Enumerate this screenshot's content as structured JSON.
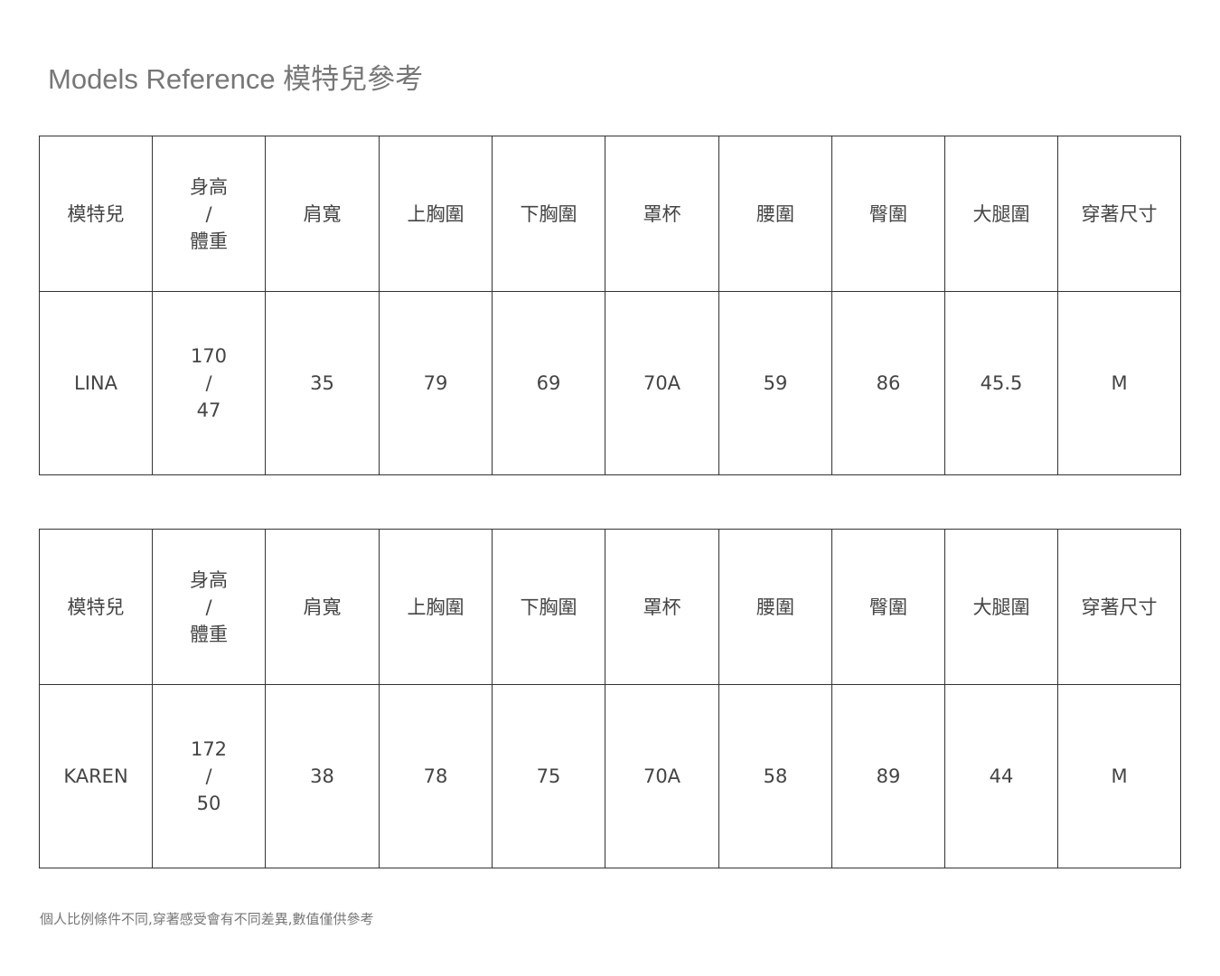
{
  "title": "Models Reference 模特兒參考",
  "headers": [
    "模特兒",
    "身高",
    "/",
    "體重",
    "肩寬",
    "上胸圍",
    "下胸圍",
    "罩杯",
    "腰圍",
    "臀圍",
    "大腿圍",
    "穿著尺寸"
  ],
  "models": [
    {
      "name": "LINA",
      "height": "170",
      "sep": "/",
      "weight": "47",
      "shoulder": "35",
      "upper_bust": "79",
      "under_bust": "69",
      "cup": "70A",
      "waist": "59",
      "hip": "86",
      "thigh": "45.5",
      "size": "M"
    },
    {
      "name": "KAREN",
      "height": "172",
      "sep": "/",
      "weight": "50",
      "shoulder": "38",
      "upper_bust": "78",
      "under_bust": "75",
      "cup": "70A",
      "waist": "58",
      "hip": "89",
      "thigh": "44",
      "size": "M"
    }
  ],
  "note": "個人比例條件不同,穿著感受會有不同差異,數值僅供參考"
}
